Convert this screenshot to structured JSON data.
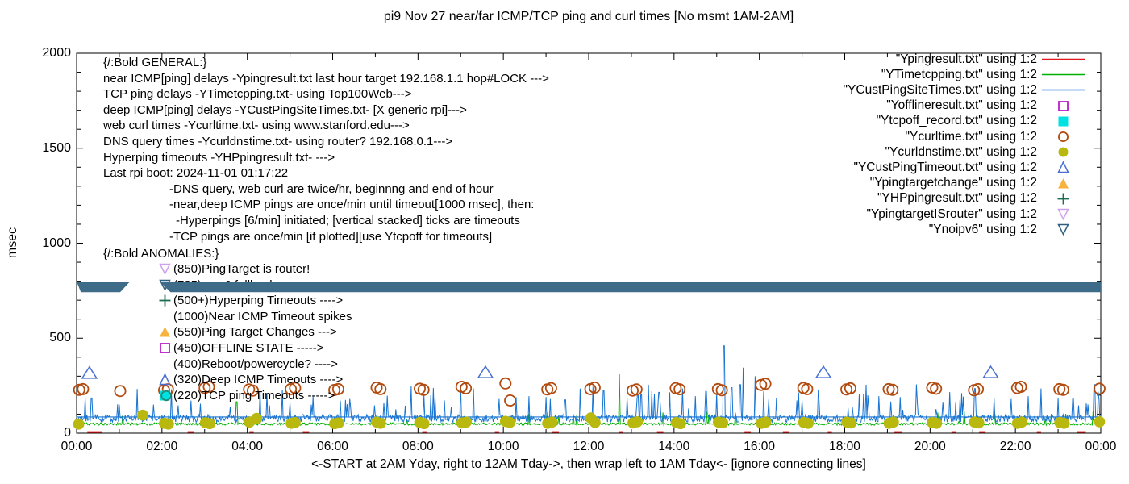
{
  "title": "pi9 Nov 27  near/far ICMP/TCP ping and curl times [No msmt 1AM-2AM]",
  "caption": "<-START at 2AM Yday, right to 12AM Tday->, then wrap left to 1AM Tday<- [ignore connecting lines]",
  "axes": {
    "y_label": "msec",
    "y_range": [
      0,
      2000
    ],
    "y_ticks": [
      0,
      500,
      1000,
      1500,
      2000
    ],
    "y_minor_step": 100,
    "x_range_hours": [
      0,
      24
    ],
    "x_tick_labels": [
      "00:00",
      "02:00",
      "04:00",
      "06:00",
      "08:00",
      "10:00",
      "12:00",
      "14:00",
      "16:00",
      "18:00",
      "20:00",
      "22:00",
      "00:00"
    ],
    "x_major_step_hours": 2,
    "x_minor_step_hours": 1
  },
  "colors": {
    "ping_red": "#e01818",
    "tcp_green": "#00b000",
    "cust_blue": "#1874d2",
    "offline_magenta": "#b81ec8",
    "tcpoff_cyan": "#00e2e2",
    "curl_brown": "#b34a0e",
    "dns_olive": "#b8b80e",
    "timeout_tri_blue": "#4a6fd4",
    "targetchange_orange": "#f8b23e",
    "hyperping_green": "#1d6b50",
    "isrouter_violet": "#cfa0ee",
    "noipv6_teal": "#30607e",
    "band_fill": "#3d6b88",
    "axis_black": "#000000"
  },
  "notes_general": {
    "lines": [
      {
        "x": 128,
        "text": "{/:Bold GENERAL:}"
      },
      {
        "x": 128,
        "text": "near ICMP[ping] delays -Ypingresult.txt last hour target 192.168.1.1 hop#LOCK --->"
      },
      {
        "x": 128,
        "text": "TCP ping delays -YTimetcpping.txt- using Top100Web--->"
      },
      {
        "x": 128,
        "text": "deep ICMP[ping] delays -YCustPingSiteTimes.txt- [X generic rpi]--->"
      },
      {
        "x": 128,
        "text": "web curl times -Ycurltime.txt- using www.stanford.edu--->"
      },
      {
        "x": 128,
        "text": "DNS query times -Ycurldnstime.txt- using router? 192.168.0.1--->"
      },
      {
        "x": 128,
        "text": "Hyperping timeouts -YHPpingresult.txt- --->"
      },
      {
        "x": 128,
        "text": "Last rpi boot: 2024-11-01 01:17:22"
      },
      {
        "x": 210,
        "text": "-DNS query, web curl are twice/hr, beginnng and end of hour"
      },
      {
        "x": 210,
        "text": "-near,deep ICMP pings are once/min until timeout[1000 msec], then:"
      },
      {
        "x": 218,
        "text": "-Hyperpings [6/min] initiated; [vertical stacked] ticks are timeouts"
      },
      {
        "x": 210,
        "text": "-TCP pings are once/min [if plotted][use Ytcpoff for timeouts]"
      }
    ]
  },
  "notes_anomalies": {
    "header": "{/:Bold ANOMALIES:}",
    "items": [
      {
        "marker": "tri-down-open",
        "color": "#cfa0ee",
        "text": "(850)PingTarget is router!"
      },
      {
        "marker": "tri-down-open",
        "color": "#30607e",
        "text": "(785)no v6 fallback --->"
      },
      {
        "marker": "plus",
        "color": "#1d6b50",
        "text": "(500+)Hyperping Timeouts ---->"
      },
      {
        "marker": "none",
        "color": "#000000",
        "text": "(1000)Near ICMP Timeout spikes"
      },
      {
        "marker": "tri-up-filled",
        "color": "#f8b23e",
        "text": "(550)Ping Target Changes --->"
      },
      {
        "marker": "square-open",
        "color": "#b81ec8",
        "text": "(450)OFFLINE STATE ----->"
      },
      {
        "marker": "none",
        "color": "#000000",
        "text": "(400)Reboot/powercycle? ---->"
      },
      {
        "marker": "tri-up-open",
        "color": "#4a6fd4",
        "text": "(320)Deep ICMP Timeouts ---->"
      },
      {
        "marker": "square-circle",
        "color": "#00e2e2",
        "color2": "#1d8a7a",
        "text": "(220)TCP ping Timeouts ----->"
      }
    ]
  },
  "legend": {
    "items": [
      {
        "label": "\"Ypingresult.txt\" using 1:2",
        "marker": "line",
        "color": "#e01818"
      },
      {
        "label": "\"YTimetcpping.txt\" using 1:2",
        "marker": "line",
        "color": "#00b000"
      },
      {
        "label": "\"YCustPingSiteTimes.txt\" using 1:2",
        "marker": "line",
        "color": "#1874d2"
      },
      {
        "label": "\"Yofflineresult.txt\" using 1:2",
        "marker": "square-open",
        "color": "#b81ec8"
      },
      {
        "label": "\"Ytcpoff_record.txt\" using 1:2",
        "marker": "square-filled",
        "color": "#00e2e2"
      },
      {
        "label": "\"Ycurltime.txt\" using 1:2",
        "marker": "circle-open",
        "color": "#b34a0e"
      },
      {
        "label": "\"Ycurldnstime.txt\" using 1:2",
        "marker": "circle-filled",
        "color": "#b8b80e"
      },
      {
        "label": "\"YCustPingTimeout.txt\" using 1:2",
        "marker": "tri-up-open",
        "color": "#4a6fd4"
      },
      {
        "label": "\"Ypingtargetchange\" using 1:2",
        "marker": "tri-up-filled",
        "color": "#f8b23e"
      },
      {
        "label": "\"YHPpingresult.txt\" using 1:2",
        "marker": "plus",
        "color": "#1d6b50"
      },
      {
        "label": "\"YpingtargetISrouter\" using 1:2",
        "marker": "tri-down-open",
        "color": "#cfa0ee"
      },
      {
        "label": "\"Ynoipv6\" using 1:2",
        "marker": "tri-down-open",
        "color": "#30607e"
      }
    ]
  },
  "chart_data": {
    "type": "line",
    "x_unit": "hours (00:00-24:00, wrapped day)",
    "y_unit": "msec",
    "series": [
      {
        "name": "Ypingresult (near ICMP ping)",
        "style": "red line ~6 msec, visible as short dashes at axis",
        "value": 6,
        "segments_hours": [
          [
            0.25,
            0.6
          ],
          [
            2.6,
            2.75
          ],
          [
            4.05,
            4.15
          ],
          [
            5.3,
            5.45
          ],
          [
            8.1,
            8.2
          ],
          [
            9.8,
            9.9
          ],
          [
            11.15,
            11.3
          ],
          [
            12.7,
            12.8
          ],
          [
            13.6,
            13.75
          ],
          [
            15.65,
            15.8
          ],
          [
            16.55,
            16.7
          ],
          [
            17.6,
            17.7
          ],
          [
            19.15,
            19.35
          ],
          [
            20.5,
            20.6
          ],
          [
            21.15,
            21.3
          ],
          [
            22.5,
            22.6
          ],
          [
            23.45,
            23.65
          ]
        ]
      },
      {
        "name": "YTimetcpping (TCP ping)",
        "style": "green noisy line",
        "baseline": 42,
        "noise_amp": 13,
        "seed": 42,
        "spikes": [
          [
            3.75,
            165
          ],
          [
            12.72,
            310
          ],
          [
            20.8,
            115
          ]
        ]
      },
      {
        "name": "YCustPingSiteTimes (deep ICMP ping)",
        "style": "blue noisy line",
        "baseline": 58,
        "noise_amp": 40,
        "seed": 1337,
        "connect_line_value": 85,
        "spikes": [
          [
            0.35,
            185
          ],
          [
            1.0,
            150
          ],
          [
            2.9,
            155
          ],
          [
            3.6,
            140
          ],
          [
            4.3,
            230
          ],
          [
            5.0,
            160
          ],
          [
            5.5,
            150
          ],
          [
            6.3,
            175
          ],
          [
            7.2,
            160
          ],
          [
            7.7,
            145
          ],
          [
            8.3,
            200
          ],
          [
            9.0,
            255
          ],
          [
            9.3,
            235
          ],
          [
            9.9,
            180
          ],
          [
            10.3,
            190
          ],
          [
            10.6,
            195
          ],
          [
            11.1,
            180
          ],
          [
            11.45,
            175
          ],
          [
            11.8,
            235
          ],
          [
            12.1,
            245
          ],
          [
            12.35,
            225
          ],
          [
            12.9,
            185
          ],
          [
            13.15,
            200
          ],
          [
            13.4,
            255
          ],
          [
            13.65,
            215
          ],
          [
            13.9,
            215
          ],
          [
            14.2,
            235
          ],
          [
            14.5,
            195
          ],
          [
            14.75,
            220
          ],
          [
            15.0,
            210
          ],
          [
            15.17,
            460
          ],
          [
            15.35,
            240
          ],
          [
            15.55,
            255
          ],
          [
            15.62,
            345
          ],
          [
            15.9,
            300
          ],
          [
            16.1,
            220
          ],
          [
            16.4,
            185
          ],
          [
            17.0,
            170
          ],
          [
            17.4,
            170
          ],
          [
            18.5,
            255
          ],
          [
            18.8,
            195
          ],
          [
            19.3,
            190
          ],
          [
            19.7,
            165
          ],
          [
            20.3,
            165
          ],
          [
            20.7,
            175
          ],
          [
            21.05,
            235
          ],
          [
            21.5,
            185
          ],
          [
            21.9,
            180
          ],
          [
            22.3,
            195
          ],
          [
            22.6,
            235
          ],
          [
            23.0,
            185
          ],
          [
            23.35,
            180
          ],
          [
            23.85,
            255
          ]
        ]
      },
      {
        "name": "Ycurltime (web curl, twice/hr)",
        "style": "open brown circles ~170-265 msec",
        "points": [
          [
            0.06,
            228
          ],
          [
            0.15,
            232
          ],
          [
            1.02,
            222
          ],
          [
            2.05,
            226
          ],
          [
            2.14,
            231
          ],
          [
            3.0,
            238
          ],
          [
            3.1,
            244
          ],
          [
            4.04,
            230
          ],
          [
            4.13,
            224
          ],
          [
            5.02,
            232
          ],
          [
            5.12,
            238
          ],
          [
            6.04,
            227
          ],
          [
            6.13,
            232
          ],
          [
            7.03,
            240
          ],
          [
            7.12,
            232
          ],
          [
            8.04,
            234
          ],
          [
            8.13,
            228
          ],
          [
            9.02,
            244
          ],
          [
            9.12,
            236
          ],
          [
            10.05,
            262
          ],
          [
            10.16,
            172
          ],
          [
            11.03,
            230
          ],
          [
            11.12,
            237
          ],
          [
            12.04,
            232
          ],
          [
            12.14,
            240
          ],
          [
            13.03,
            224
          ],
          [
            13.12,
            230
          ],
          [
            14.04,
            237
          ],
          [
            14.13,
            231
          ],
          [
            15.03,
            232
          ],
          [
            15.12,
            226
          ],
          [
            16.04,
            254
          ],
          [
            16.14,
            260
          ],
          [
            17.03,
            238
          ],
          [
            17.12,
            232
          ],
          [
            18.04,
            230
          ],
          [
            18.13,
            236
          ],
          [
            19.03,
            232
          ],
          [
            19.12,
            228
          ],
          [
            20.05,
            240
          ],
          [
            20.14,
            234
          ],
          [
            21.03,
            226
          ],
          [
            21.12,
            232
          ],
          [
            22.04,
            238
          ],
          [
            22.13,
            244
          ],
          [
            23.03,
            232
          ],
          [
            23.12,
            228
          ],
          [
            23.97,
            234
          ]
        ]
      },
      {
        "name": "Ycurldnstime (DNS query, twice/hr)",
        "style": "filled olive circles ~45-95 msec",
        "points": [
          [
            0.05,
            48
          ],
          [
            1.55,
            95
          ],
          [
            2.06,
            52
          ],
          [
            2.15,
            48
          ],
          [
            3.02,
            55
          ],
          [
            3.12,
            50
          ],
          [
            4.05,
            58
          ],
          [
            4.22,
            78
          ],
          [
            5.03,
            52
          ],
          [
            5.12,
            56
          ],
          [
            6.05,
            50
          ],
          [
            6.14,
            54
          ],
          [
            7.03,
            58
          ],
          [
            7.12,
            52
          ],
          [
            8.04,
            56
          ],
          [
            8.14,
            50
          ],
          [
            9.03,
            54
          ],
          [
            9.13,
            58
          ],
          [
            10.05,
            62
          ],
          [
            10.15,
            56
          ],
          [
            11.04,
            52
          ],
          [
            11.14,
            58
          ],
          [
            12.05,
            80
          ],
          [
            12.15,
            56
          ],
          [
            13.04,
            54
          ],
          [
            13.14,
            60
          ],
          [
            14.05,
            56
          ],
          [
            14.15,
            50
          ],
          [
            15.04,
            58
          ],
          [
            15.14,
            54
          ],
          [
            16.05,
            52
          ],
          [
            16.15,
            58
          ],
          [
            17.04,
            56
          ],
          [
            17.14,
            52
          ],
          [
            18.05,
            58
          ],
          [
            18.15,
            54
          ],
          [
            19.04,
            52
          ],
          [
            19.14,
            58
          ],
          [
            20.05,
            56
          ],
          [
            20.15,
            52
          ],
          [
            21.04,
            58
          ],
          [
            21.14,
            54
          ],
          [
            22.05,
            52
          ],
          [
            22.15,
            58
          ],
          [
            23.04,
            56
          ],
          [
            23.14,
            52
          ],
          [
            23.97,
            60
          ]
        ]
      },
      {
        "name": "YCustPingTimeout (deep ICMP timeouts)",
        "style": "open blue triangles ~320 msec",
        "points": [
          [
            0.3,
            315
          ],
          [
            9.58,
            318
          ],
          [
            17.5,
            318
          ],
          [
            21.42,
            318
          ]
        ]
      },
      {
        "name": "Ynoipv6",
        "style": "dense dark-teal down-triangles forming solid band at ~770-785 msec; gap = no msmt 1AM-2AM",
        "band_value": 770,
        "polygons_hour_msec": [
          [
            [
              0,
              798
            ],
            [
              1.25,
              798
            ],
            [
              1.02,
              742
            ],
            [
              0.1,
              742
            ]
          ],
          [
            [
              1.95,
              798
            ],
            [
              24,
              798
            ],
            [
              24,
              742
            ],
            [
              2.2,
              742
            ]
          ]
        ]
      },
      {
        "name": "Yofflineresult",
        "points": []
      },
      {
        "name": "Ytcpoff_record",
        "points": []
      },
      {
        "name": "Ypingtargetchange",
        "points": []
      },
      {
        "name": "YHPpingresult",
        "points": []
      },
      {
        "name": "YpingtargetISrouter",
        "points": []
      }
    ]
  }
}
